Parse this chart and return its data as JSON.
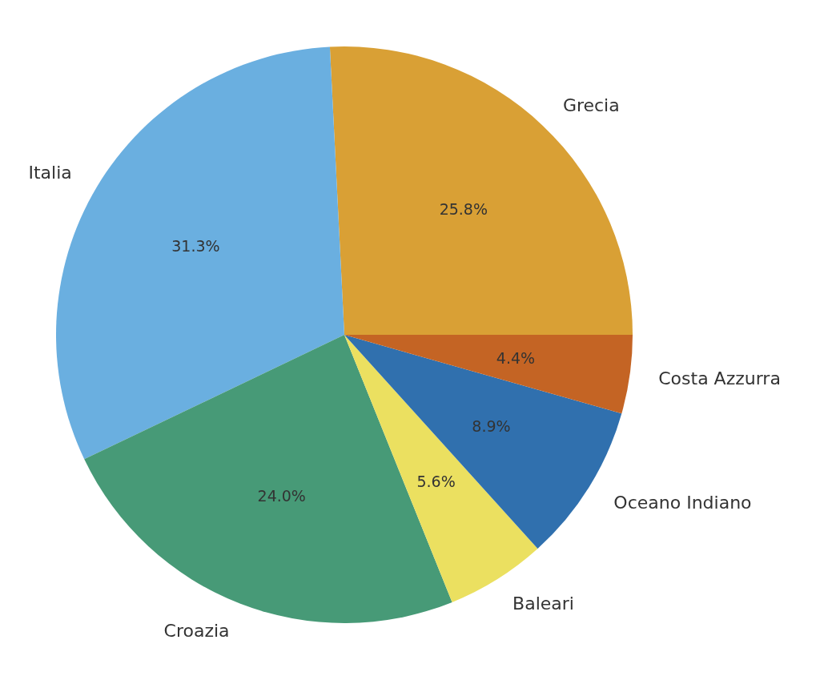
{
  "chart_data": {
    "type": "pie",
    "categories": [
      "Grecia",
      "Italia",
      "Croazia",
      "Baleari",
      "Oceano Indiano",
      "Costa Azzurra"
    ],
    "values": [
      25.8,
      31.3,
      24.0,
      5.6,
      8.9,
      4.4
    ],
    "colors": [
      "#d9a035",
      "#6aafe0",
      "#479a77",
      "#ebe060",
      "#3070ae",
      "#c46424"
    ],
    "value_labels": [
      "25.8%",
      "31.3%",
      "24.0%",
      "5.6%",
      "8.9%",
      "4.4%"
    ]
  }
}
